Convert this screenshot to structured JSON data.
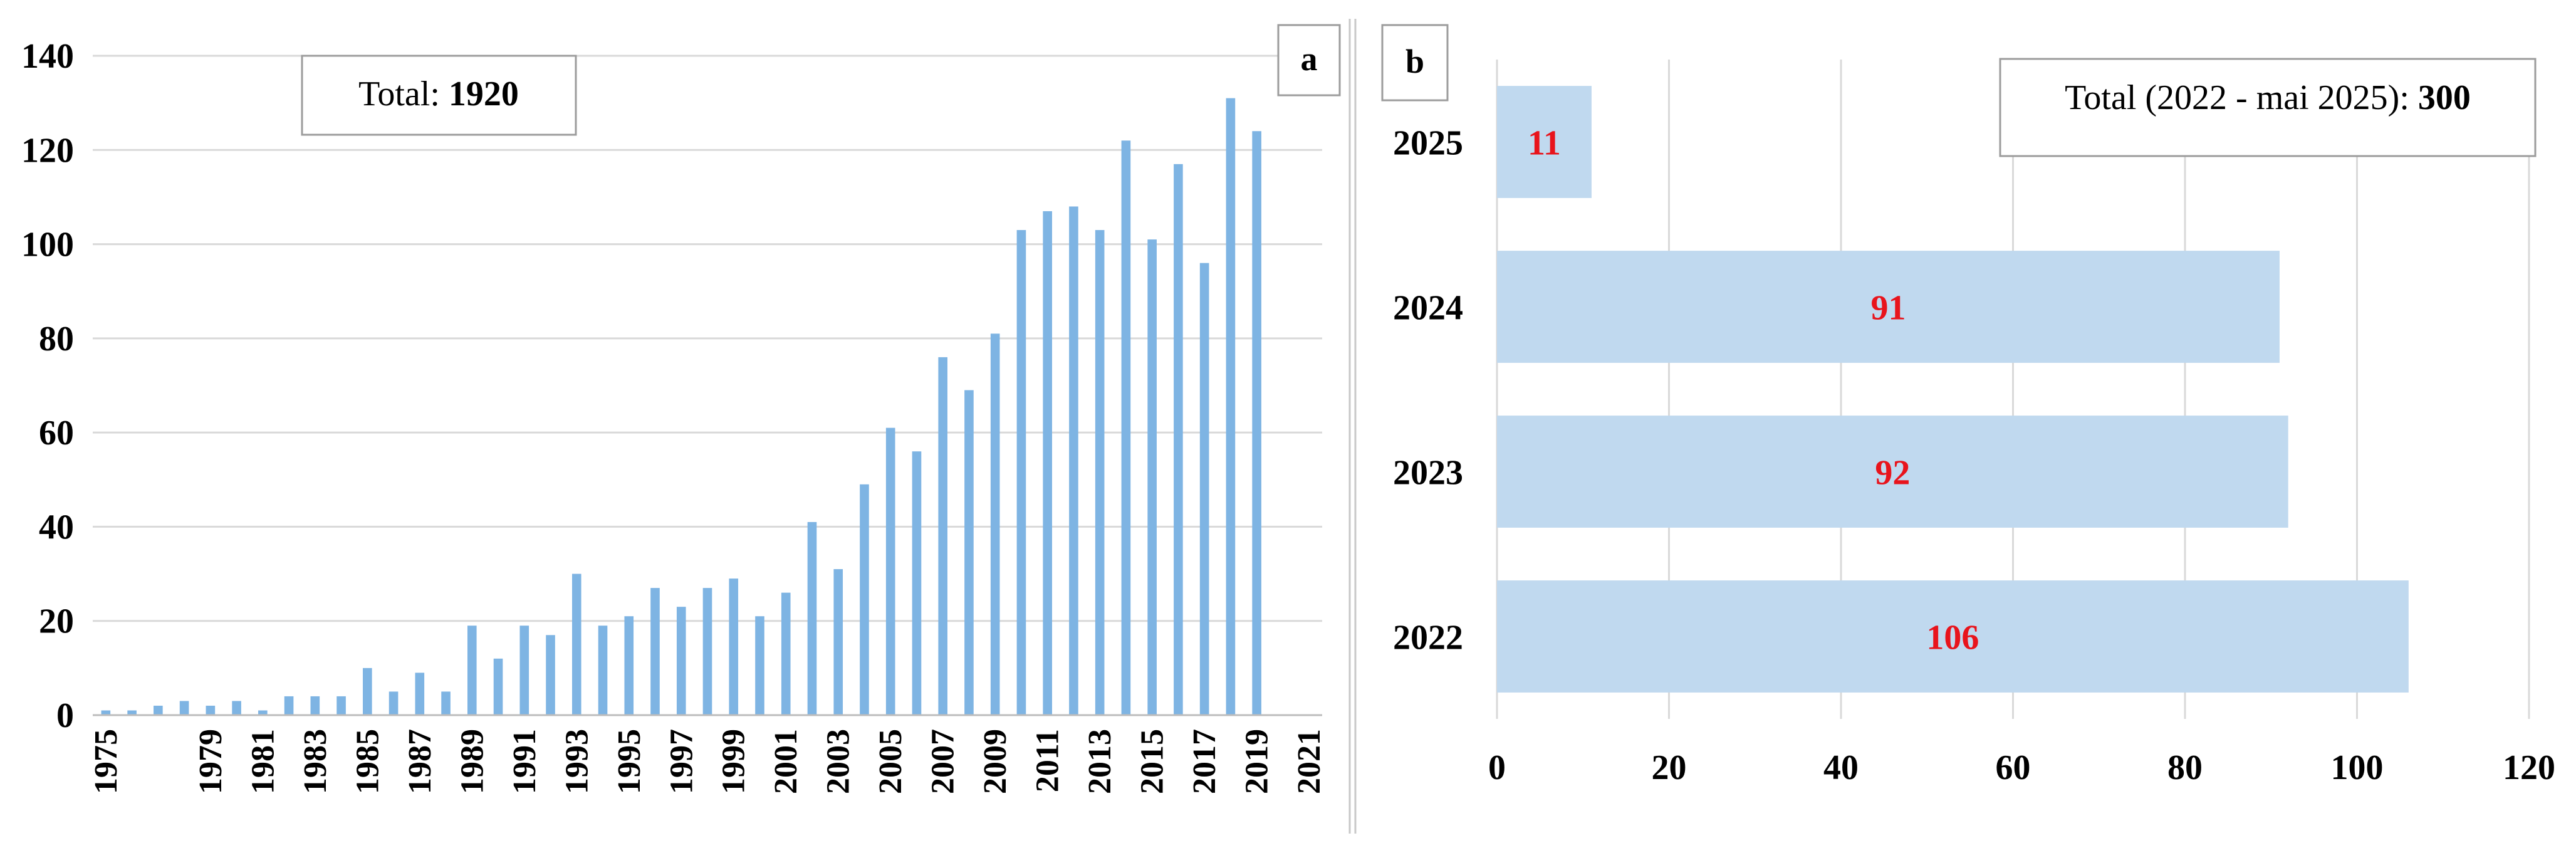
{
  "chart_data": [
    {
      "panel": "a",
      "type": "bar",
      "x": [
        1975,
        1976,
        1977,
        1978,
        1979,
        1980,
        1981,
        1982,
        1983,
        1984,
        1985,
        1986,
        1987,
        1988,
        1989,
        1990,
        1991,
        1992,
        1993,
        1994,
        1995,
        1996,
        1997,
        1998,
        1999,
        2000,
        2001,
        2002,
        2003,
        2004,
        2005,
        2006,
        2007,
        2008,
        2009,
        2010,
        2011,
        2012,
        2013,
        2014,
        2015,
        2016,
        2017,
        2018,
        2019,
        2020,
        2021
      ],
      "values": [
        1,
        1,
        2,
        3,
        2,
        3,
        1,
        4,
        4,
        4,
        10,
        5,
        9,
        5,
        19,
        12,
        19,
        17,
        30,
        19,
        21,
        27,
        23,
        27,
        29,
        21,
        26,
        41,
        31,
        49,
        61,
        56,
        76,
        69,
        81,
        103,
        107,
        108,
        103,
        122,
        101,
        117,
        96,
        131,
        124,
        0,
        0
      ],
      "x_tick_labels": [
        "1975",
        "1979",
        "1981",
        "1983",
        "1985",
        "1987",
        "1989",
        "1991",
        "1993",
        "1995",
        "1997",
        "1999",
        "2001",
        "2003",
        "2005",
        "2007",
        "2009",
        "2011",
        "2013",
        "2015",
        "2017",
        "2019",
        "2021"
      ],
      "ylim": [
        0,
        140
      ],
      "y_ticks": [
        "0",
        "20",
        "40",
        "60",
        "80",
        "100",
        "120",
        "140"
      ],
      "grid": true,
      "color": "#7eb4e3",
      "annotation_prefix": "Total: ",
      "annotation_value": "1920"
    },
    {
      "panel": "b",
      "type": "bar",
      "orientation": "horizontal",
      "categories": [
        "2022",
        "2023",
        "2024",
        "2025"
      ],
      "values": [
        106,
        92,
        91,
        11
      ],
      "data_labels": [
        "106",
        "92",
        "91",
        "11"
      ],
      "xlim": [
        0,
        120
      ],
      "x_ticks": [
        "0",
        "20",
        "40",
        "60",
        "80",
        "100",
        "120"
      ],
      "grid": true,
      "color": "#c0d9ef",
      "label_color": "#e8141c",
      "annotation_prefix": "Total (2022 - mai 2025): ",
      "annotation_value": "300"
    }
  ]
}
